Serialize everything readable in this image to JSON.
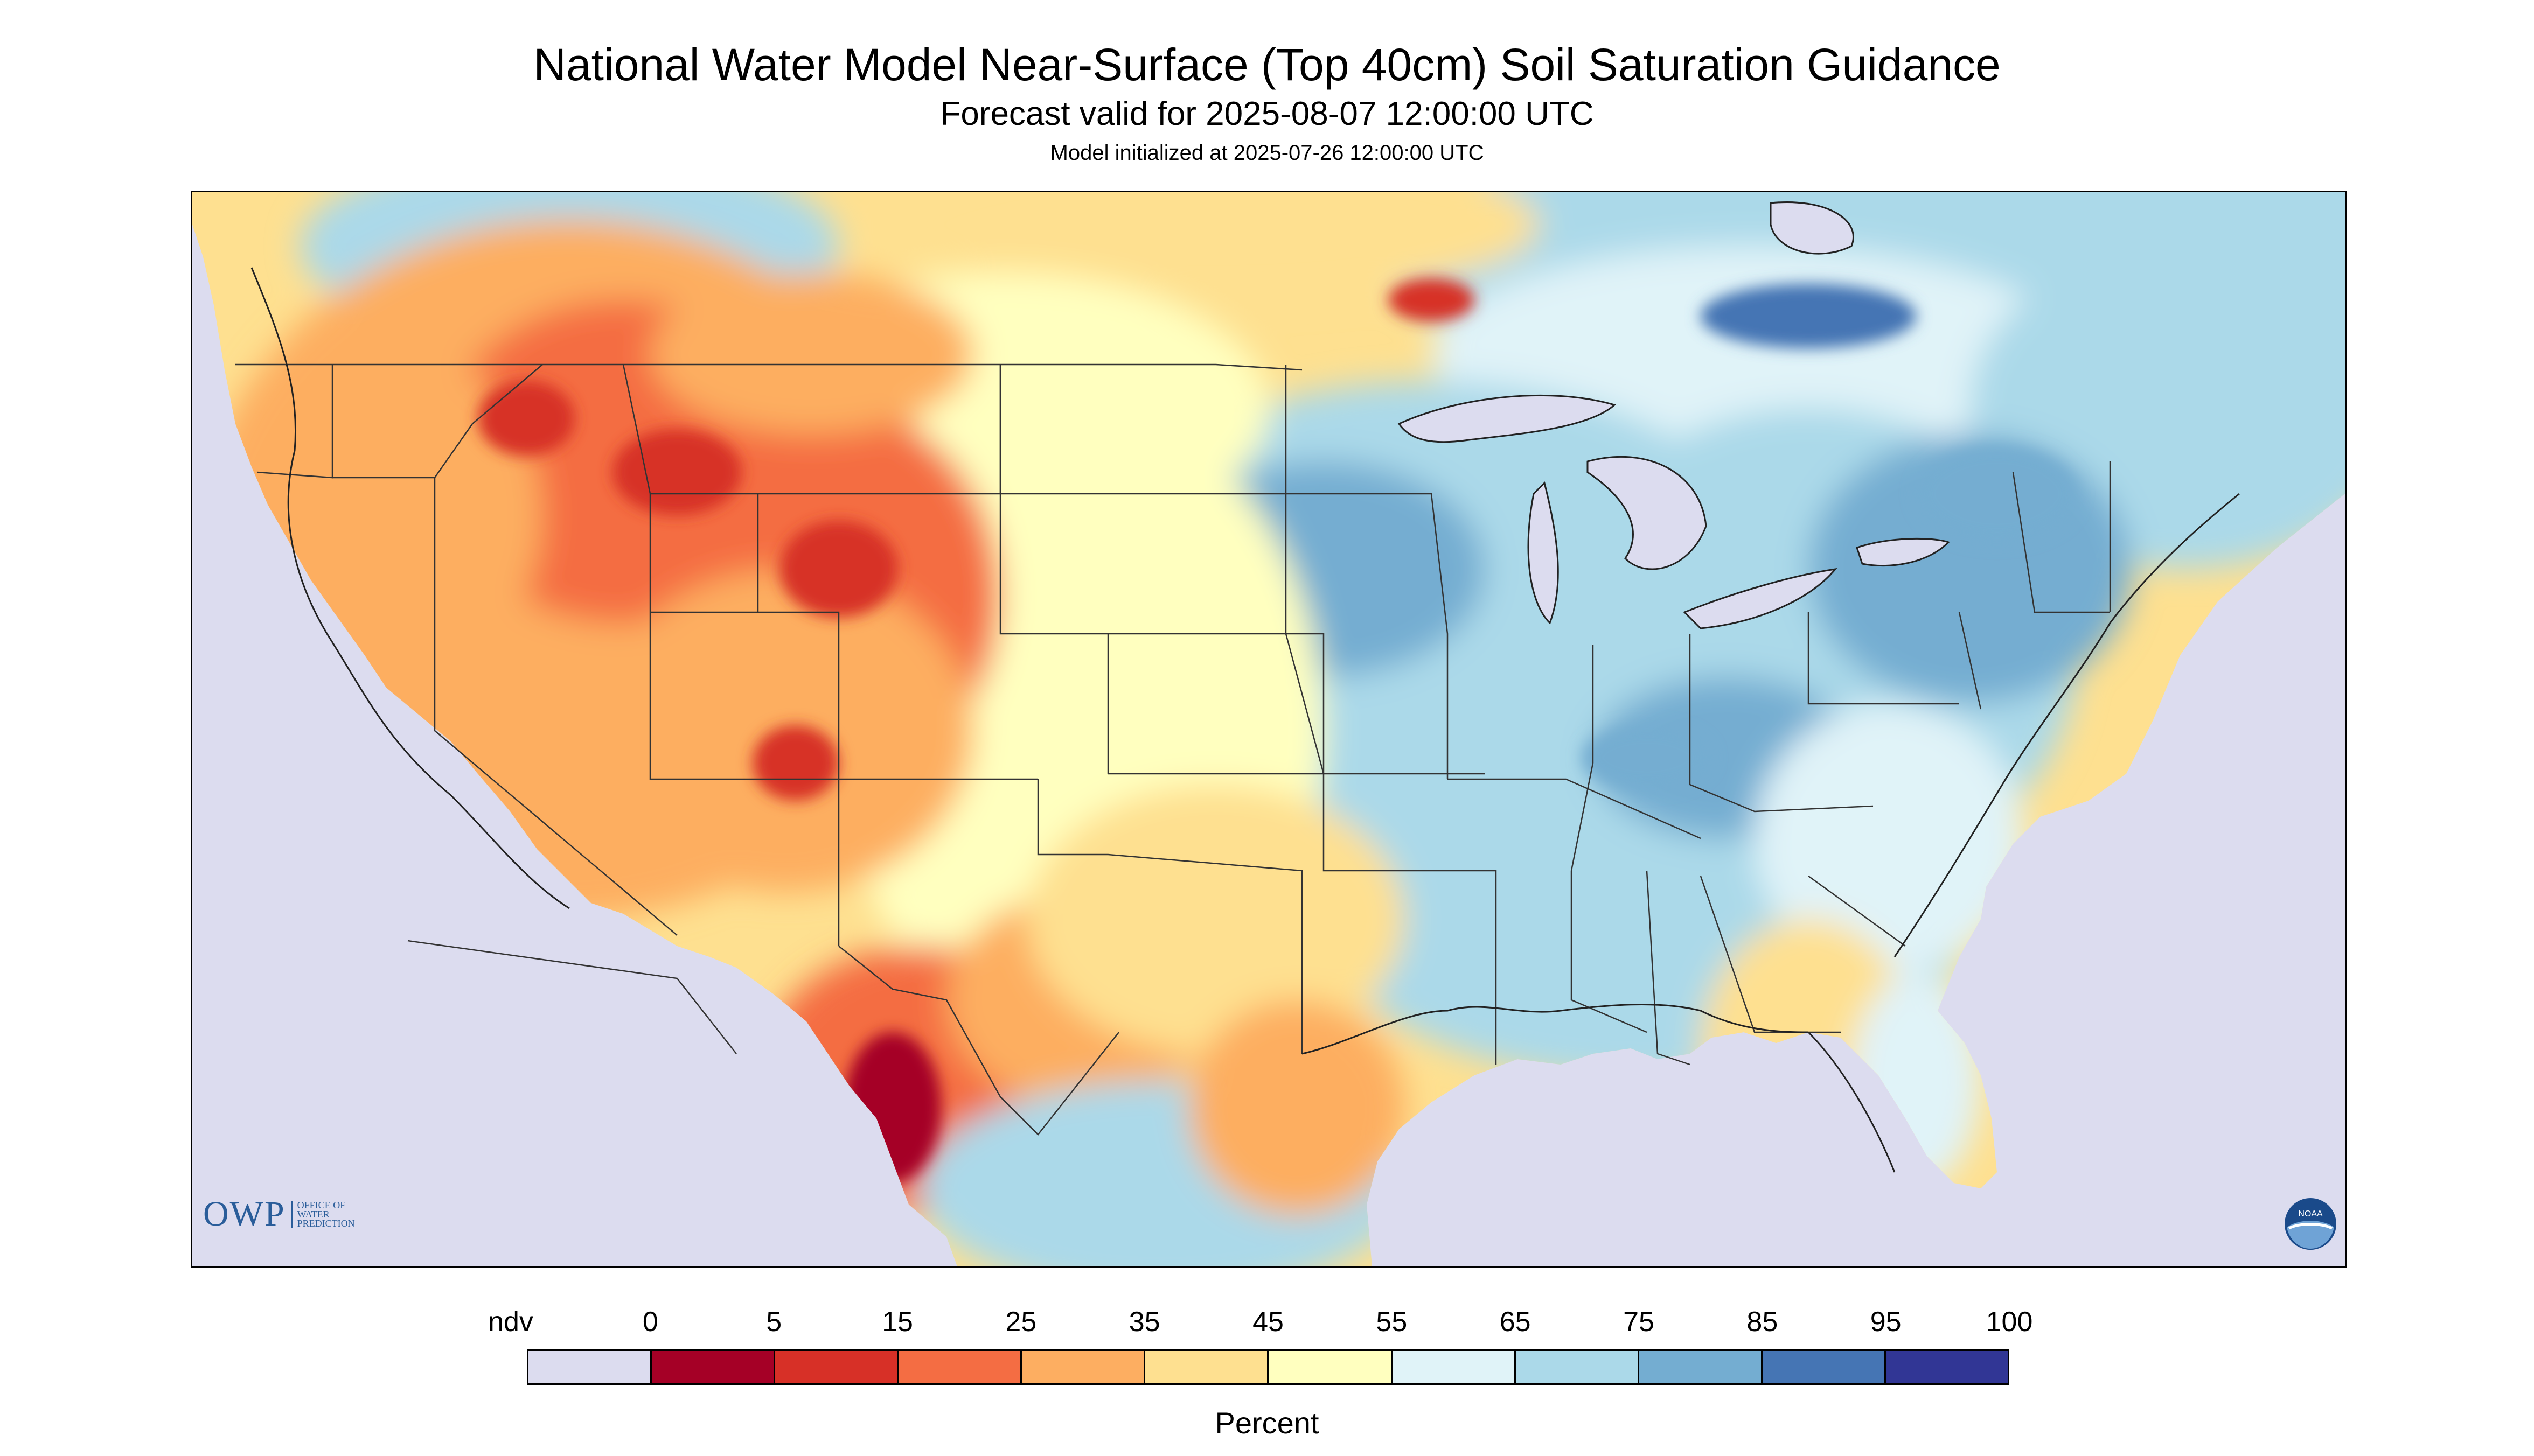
{
  "title": "National Water Model Near-Surface (Top 40cm) Soil Saturation Guidance",
  "subtitle": "Forecast valid for 2025-08-07 12:00:00 UTC",
  "model_init": "Model initialized at 2025-07-26 12:00:00 UTC",
  "owp_logo": {
    "mark": "OWP",
    "line1": "OFFICE OF",
    "line2": "WATER",
    "line3": "PREDICTION"
  },
  "noaa_logo": {
    "icon": "noaa-logo-icon",
    "text": "NOAA"
  },
  "legend": {
    "label": "Percent",
    "ticks": [
      "ndv",
      "0",
      "5",
      "15",
      "25",
      "35",
      "45",
      "55",
      "65",
      "75",
      "85",
      "95",
      "100"
    ],
    "colors": [
      "#dcdcef",
      "#a50026",
      "#d73027",
      "#f46d43",
      "#fdae61",
      "#fee090",
      "#ffffbf",
      "#e0f3f8",
      "#abd9e9",
      "#74add1",
      "#4575b4",
      "#313695"
    ]
  },
  "map": {
    "nodata_color": "#dcdcef",
    "water_color": "#dcdcef",
    "border_color": "#333333"
  }
}
